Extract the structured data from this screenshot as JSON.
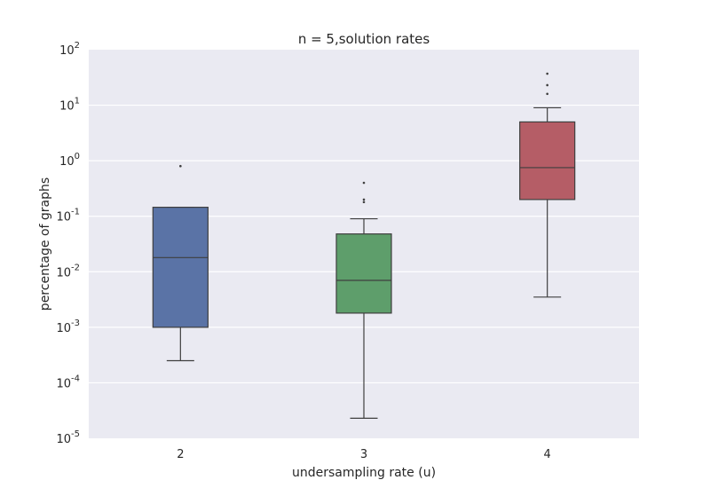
{
  "chart_data": {
    "type": "box",
    "title": "n = 5,solution rates",
    "xlabel": "undersampling rate (u)",
    "ylabel": "percentage of graphs",
    "yscale": "log",
    "ylim": [
      1e-05,
      100
    ],
    "yticks": [
      {
        "base": "10",
        "exp": "-5",
        "value": 1e-05
      },
      {
        "base": "10",
        "exp": "-4",
        "value": 0.0001
      },
      {
        "base": "10",
        "exp": "-3",
        "value": 0.001
      },
      {
        "base": "10",
        "exp": "-2",
        "value": 0.01
      },
      {
        "base": "10",
        "exp": "-1",
        "value": 0.1
      },
      {
        "base": "10",
        "exp": "0",
        "value": 1
      },
      {
        "base": "10",
        "exp": "1",
        "value": 10
      },
      {
        "base": "10",
        "exp": "2",
        "value": 100
      }
    ],
    "grid": true,
    "background": "#eaeaf2",
    "categories": [
      "2",
      "3",
      "4"
    ],
    "boxes": [
      {
        "category": "2",
        "color": "#5a73a6",
        "whisker_low": 0.00025,
        "q1": 0.001,
        "median": 0.018,
        "q3": 0.145,
        "whisker_high": 0.145,
        "outliers": [
          0.8
        ]
      },
      {
        "category": "3",
        "color": "#5e9e6b",
        "whisker_low": 2.3e-05,
        "q1": 0.0018,
        "median": 0.007,
        "q3": 0.048,
        "whisker_high": 0.09,
        "outliers": [
          0.18,
          0.2,
          0.4
        ]
      },
      {
        "category": "4",
        "color": "#b55d66",
        "whisker_low": 0.0035,
        "q1": 0.2,
        "median": 0.75,
        "q3": 5.0,
        "whisker_high": 9.0,
        "outliers": [
          16,
          23,
          37
        ]
      }
    ]
  }
}
